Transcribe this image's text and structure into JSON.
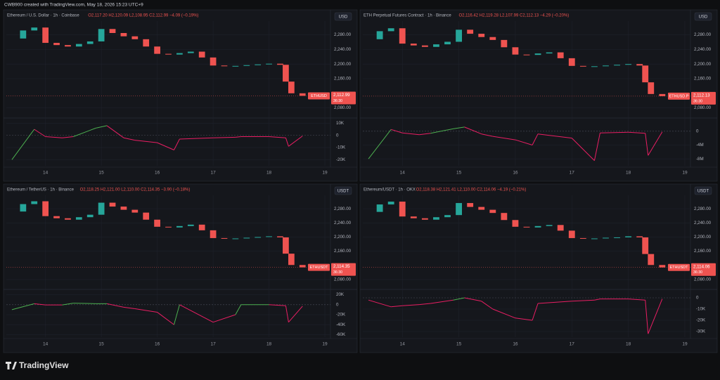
{
  "page": {
    "credit": "CWB900 created with TradingView.com, May 18, 2026 15:23 UTC+9",
    "brand": "TradingView"
  },
  "chart_data": [
    {
      "type": "candlestick",
      "title": "Ethereum / U.S. Dollar · 1h · Coinbase",
      "ohlc": "O2,117.20 H2,120.09 L2,108.95 C2,112.99 −4.09 (−0.19%)",
      "currency": "USD",
      "symbol": "ETHUSD",
      "countdown": "36:30",
      "last_price": {
        "value": 2112.99,
        "label": "2,112.99"
      },
      "x": [
        13.4,
        13.6,
        13.8,
        14.0,
        14.2,
        14.4,
        14.6,
        14.8,
        15.0,
        15.2,
        15.4,
        15.6,
        15.8,
        16.0,
        16.2,
        16.4,
        16.6,
        16.8,
        17.0,
        17.2,
        17.4,
        17.6,
        17.8,
        18.0,
        18.2,
        18.3,
        18.4,
        18.6
      ],
      "values": [
        2270,
        2292,
        2300,
        2258,
        2252,
        2248,
        2255,
        2262,
        2296,
        2285,
        2276,
        2268,
        2248,
        2228,
        2226,
        2230,
        2234,
        2218,
        2196,
        2194,
        2195,
        2197,
        2199,
        2201,
        2198,
        2152,
        2120,
        2112.99
      ],
      "xlim": [
        13.3,
        19.1
      ],
      "xticks": [
        14,
        15,
        16,
        17,
        18,
        19
      ],
      "ylim": [
        2060,
        2310
      ],
      "yticks": [
        {
          "value": 2280,
          "label": "2,280.00"
        },
        {
          "value": 2240,
          "label": "2,240.00"
        },
        {
          "value": 2200,
          "label": "2,200.00"
        },
        {
          "value": 2160,
          "label": "2,160.00"
        },
        {
          "value": 2080,
          "label": "2,080.00"
        }
      ],
      "up_color": "#26a69a",
      "down_color": "#ef5350",
      "oscillator": {
        "x": [
          13.4,
          13.8,
          14.0,
          14.3,
          14.5,
          14.9,
          15.1,
          15.4,
          15.6,
          16.0,
          16.3,
          16.4,
          17.0,
          17.4,
          17.5,
          18.0,
          18.3,
          18.35,
          18.6
        ],
        "values": [
          -20000,
          5000,
          -1000,
          -2000,
          -1000,
          6000,
          8000,
          -2000,
          -4000,
          -6000,
          -12000,
          -3000,
          -2000,
          -1500,
          -1000,
          -1000,
          -2000,
          -9000,
          -500
        ],
        "ylim": [
          -25000,
          12000
        ],
        "yticks": [
          {
            "value": 10000,
            "label": "10K"
          },
          0,
          {
            "value": -10000,
            "label": "-10K"
          },
          {
            "value": -20000,
            "label": "-20K"
          }
        ],
        "up_color": "#4caf50",
        "down_color": "#e91e63"
      }
    },
    {
      "type": "candlestick",
      "title": "ETH Perpetual Futures Contract · 1h · Binance",
      "ohlc": "O2,116.42 H2,119.28 L2,107.99 C2,112.13 −4.29 (−0.20%)",
      "currency": "USD",
      "symbol": "ETHUSD.P",
      "countdown": "36:30",
      "last_price": {
        "value": 2112.13,
        "label": "2,112.13"
      },
      "x": [
        13.4,
        13.6,
        13.8,
        14.0,
        14.2,
        14.4,
        14.6,
        14.8,
        15.0,
        15.2,
        15.4,
        15.6,
        15.8,
        16.0,
        16.2,
        16.4,
        16.6,
        16.8,
        17.0,
        17.2,
        17.4,
        17.6,
        17.8,
        18.0,
        18.2,
        18.3,
        18.4,
        18.6
      ],
      "values": [
        2268,
        2290,
        2298,
        2256,
        2251,
        2247,
        2254,
        2261,
        2294,
        2283,
        2274,
        2266,
        2246,
        2226,
        2225,
        2229,
        2232,
        2216,
        2195,
        2193,
        2194,
        2196,
        2198,
        2200,
        2196,
        2150,
        2118,
        2112.13
      ],
      "xlim": [
        13.3,
        19.1
      ],
      "xticks": [
        14,
        15,
        16,
        17,
        18,
        19
      ],
      "ylim": [
        2060,
        2310
      ],
      "yticks": [
        {
          "value": 2280,
          "label": "2,280.00"
        },
        {
          "value": 2240,
          "label": "2,240.00"
        },
        {
          "value": 2200,
          "label": "2,200.00"
        },
        {
          "value": 2160,
          "label": "2,160.00"
        },
        {
          "value": 2080,
          "label": "2,080.00"
        }
      ],
      "up_color": "#26a69a",
      "down_color": "#ef5350",
      "oscillator": {
        "x": [
          13.4,
          13.8,
          14.0,
          14.3,
          14.5,
          14.9,
          15.1,
          15.4,
          15.6,
          16.0,
          16.3,
          16.4,
          17.0,
          17.4,
          17.5,
          18.0,
          18.3,
          18.35,
          18.6
        ],
        "values": [
          -8000000,
          500000,
          -500000,
          -1000000,
          -600000,
          700000,
          1200000,
          -800000,
          -1500000,
          -2500000,
          -4000000,
          -800000,
          -2000000,
          -8500000,
          -500000,
          -300000,
          -600000,
          -7000000,
          -200000
        ],
        "ylim": [
          -10000000,
          3000000
        ],
        "yticks": [
          0,
          {
            "value": -4000000,
            "label": "-4M"
          },
          {
            "value": -8000000,
            "label": "-8M"
          }
        ],
        "up_color": "#4caf50",
        "down_color": "#e91e63"
      }
    },
    {
      "type": "candlestick",
      "title": "Ethereum / TetherUS · 1h · Binance",
      "ohlc": "O2,118.25 H2,121.00 L2,110.00 C2,114.35 −3.90 (−0.18%)",
      "currency": "USDT",
      "symbol": "ETHUSDT",
      "countdown": "36:30",
      "last_price": {
        "value": 2114.35,
        "label": "2,114.35"
      },
      "x": [
        13.4,
        13.6,
        13.8,
        14.0,
        14.2,
        14.4,
        14.6,
        14.8,
        15.0,
        15.2,
        15.4,
        15.6,
        15.8,
        16.0,
        16.2,
        16.4,
        16.6,
        16.8,
        17.0,
        17.2,
        17.4,
        17.6,
        17.8,
        18.0,
        18.2,
        18.3,
        18.4,
        18.6
      ],
      "values": [
        2272,
        2293,
        2301,
        2259,
        2253,
        2249,
        2256,
        2263,
        2297,
        2286,
        2277,
        2269,
        2249,
        2229,
        2227,
        2231,
        2235,
        2219,
        2197,
        2195,
        2196,
        2198,
        2200,
        2202,
        2199,
        2153,
        2121,
        2114.35
      ],
      "xlim": [
        13.3,
        19.1
      ],
      "xticks": [
        14,
        15,
        16,
        17,
        18,
        19
      ],
      "ylim": [
        2060,
        2310
      ],
      "yticks": [
        {
          "value": 2280,
          "label": "2,280.00"
        },
        {
          "value": 2240,
          "label": "2,240.00"
        },
        {
          "value": 2200,
          "label": "2,200.00"
        },
        {
          "value": 2160,
          "label": "2,160.00"
        },
        {
          "value": 2080,
          "label": "2,080.00"
        }
      ],
      "up_color": "#26a69a",
      "down_color": "#ef5350",
      "oscillator": {
        "x": [
          13.4,
          13.8,
          14.0,
          14.3,
          14.5,
          14.9,
          15.1,
          15.4,
          15.6,
          16.0,
          16.3,
          16.4,
          17.0,
          17.4,
          17.5,
          18.0,
          18.3,
          18.35,
          18.6
        ],
        "values": [
          -10000,
          2000,
          -500,
          -500,
          3000,
          2000,
          2000,
          -5000,
          -8000,
          -15000,
          -40000,
          0,
          -35000,
          -20000,
          0,
          0,
          -2000,
          -35000,
          -3000
        ],
        "ylim": [
          -65000,
          25000
        ],
        "yticks": [
          {
            "value": 20000,
            "label": "20K"
          },
          0,
          {
            "value": -20000,
            "label": "-20K"
          },
          {
            "value": -40000,
            "label": "-40K"
          },
          {
            "value": -60000,
            "label": "-60K"
          }
        ],
        "up_color": "#4caf50",
        "down_color": "#e91e63"
      }
    },
    {
      "type": "candlestick",
      "title": "Ethereum/USDT · 1h · OKX",
      "ohlc": "O2,118.38 H2,121.41 L2,110.00 C2,114.06 −4.19 (−0.21%)",
      "currency": "USDT",
      "symbol": "ETHUSDT",
      "countdown": "36:30",
      "last_price": {
        "value": 2114.06,
        "label": "2,114.06"
      },
      "x": [
        13.4,
        13.6,
        13.8,
        14.0,
        14.2,
        14.4,
        14.6,
        14.8,
        15.0,
        15.2,
        15.4,
        15.6,
        15.8,
        16.0,
        16.2,
        16.4,
        16.6,
        16.8,
        17.0,
        17.2,
        17.4,
        17.6,
        17.8,
        18.0,
        18.2,
        18.3,
        18.4,
        18.6
      ],
      "values": [
        2271,
        2292,
        2300,
        2258,
        2253,
        2249,
        2256,
        2262,
        2296,
        2285,
        2277,
        2268,
        2248,
        2229,
        2227,
        2231,
        2234,
        2218,
        2197,
        2195,
        2196,
        2198,
        2199,
        2202,
        2199,
        2152,
        2121,
        2114.06
      ],
      "xlim": [
        13.3,
        19.1
      ],
      "xticks": [
        14,
        15,
        16,
        17,
        18,
        19
      ],
      "ylim": [
        2060,
        2310
      ],
      "yticks": [
        {
          "value": 2280,
          "label": "2,280.00"
        },
        {
          "value": 2240,
          "label": "2,240.00"
        },
        {
          "value": 2200,
          "label": "2,200.00"
        },
        {
          "value": 2160,
          "label": "2,160.00"
        },
        {
          "value": 2080,
          "label": "2,080.00"
        }
      ],
      "up_color": "#26a69a",
      "down_color": "#ef5350",
      "oscillator": {
        "x": [
          13.4,
          13.8,
          14.0,
          14.3,
          14.5,
          14.9,
          15.1,
          15.4,
          15.6,
          16.0,
          16.3,
          16.4,
          17.0,
          17.4,
          17.5,
          18.0,
          18.3,
          18.35,
          18.6
        ],
        "values": [
          -2000,
          -8000,
          -7000,
          -6000,
          -5000,
          -2000,
          0,
          -3000,
          -10000,
          -18000,
          -20000,
          -5000,
          -3000,
          -2000,
          -1000,
          -1000,
          -2000,
          -32000,
          -1000
        ],
        "ylim": [
          -35000,
          5000
        ],
        "yticks": [
          0,
          {
            "value": -10000,
            "label": "-10K"
          },
          {
            "value": -20000,
            "label": "-20K"
          },
          {
            "value": -30000,
            "label": "-30K"
          }
        ],
        "up_color": "#4caf50",
        "down_color": "#e91e63"
      }
    }
  ]
}
